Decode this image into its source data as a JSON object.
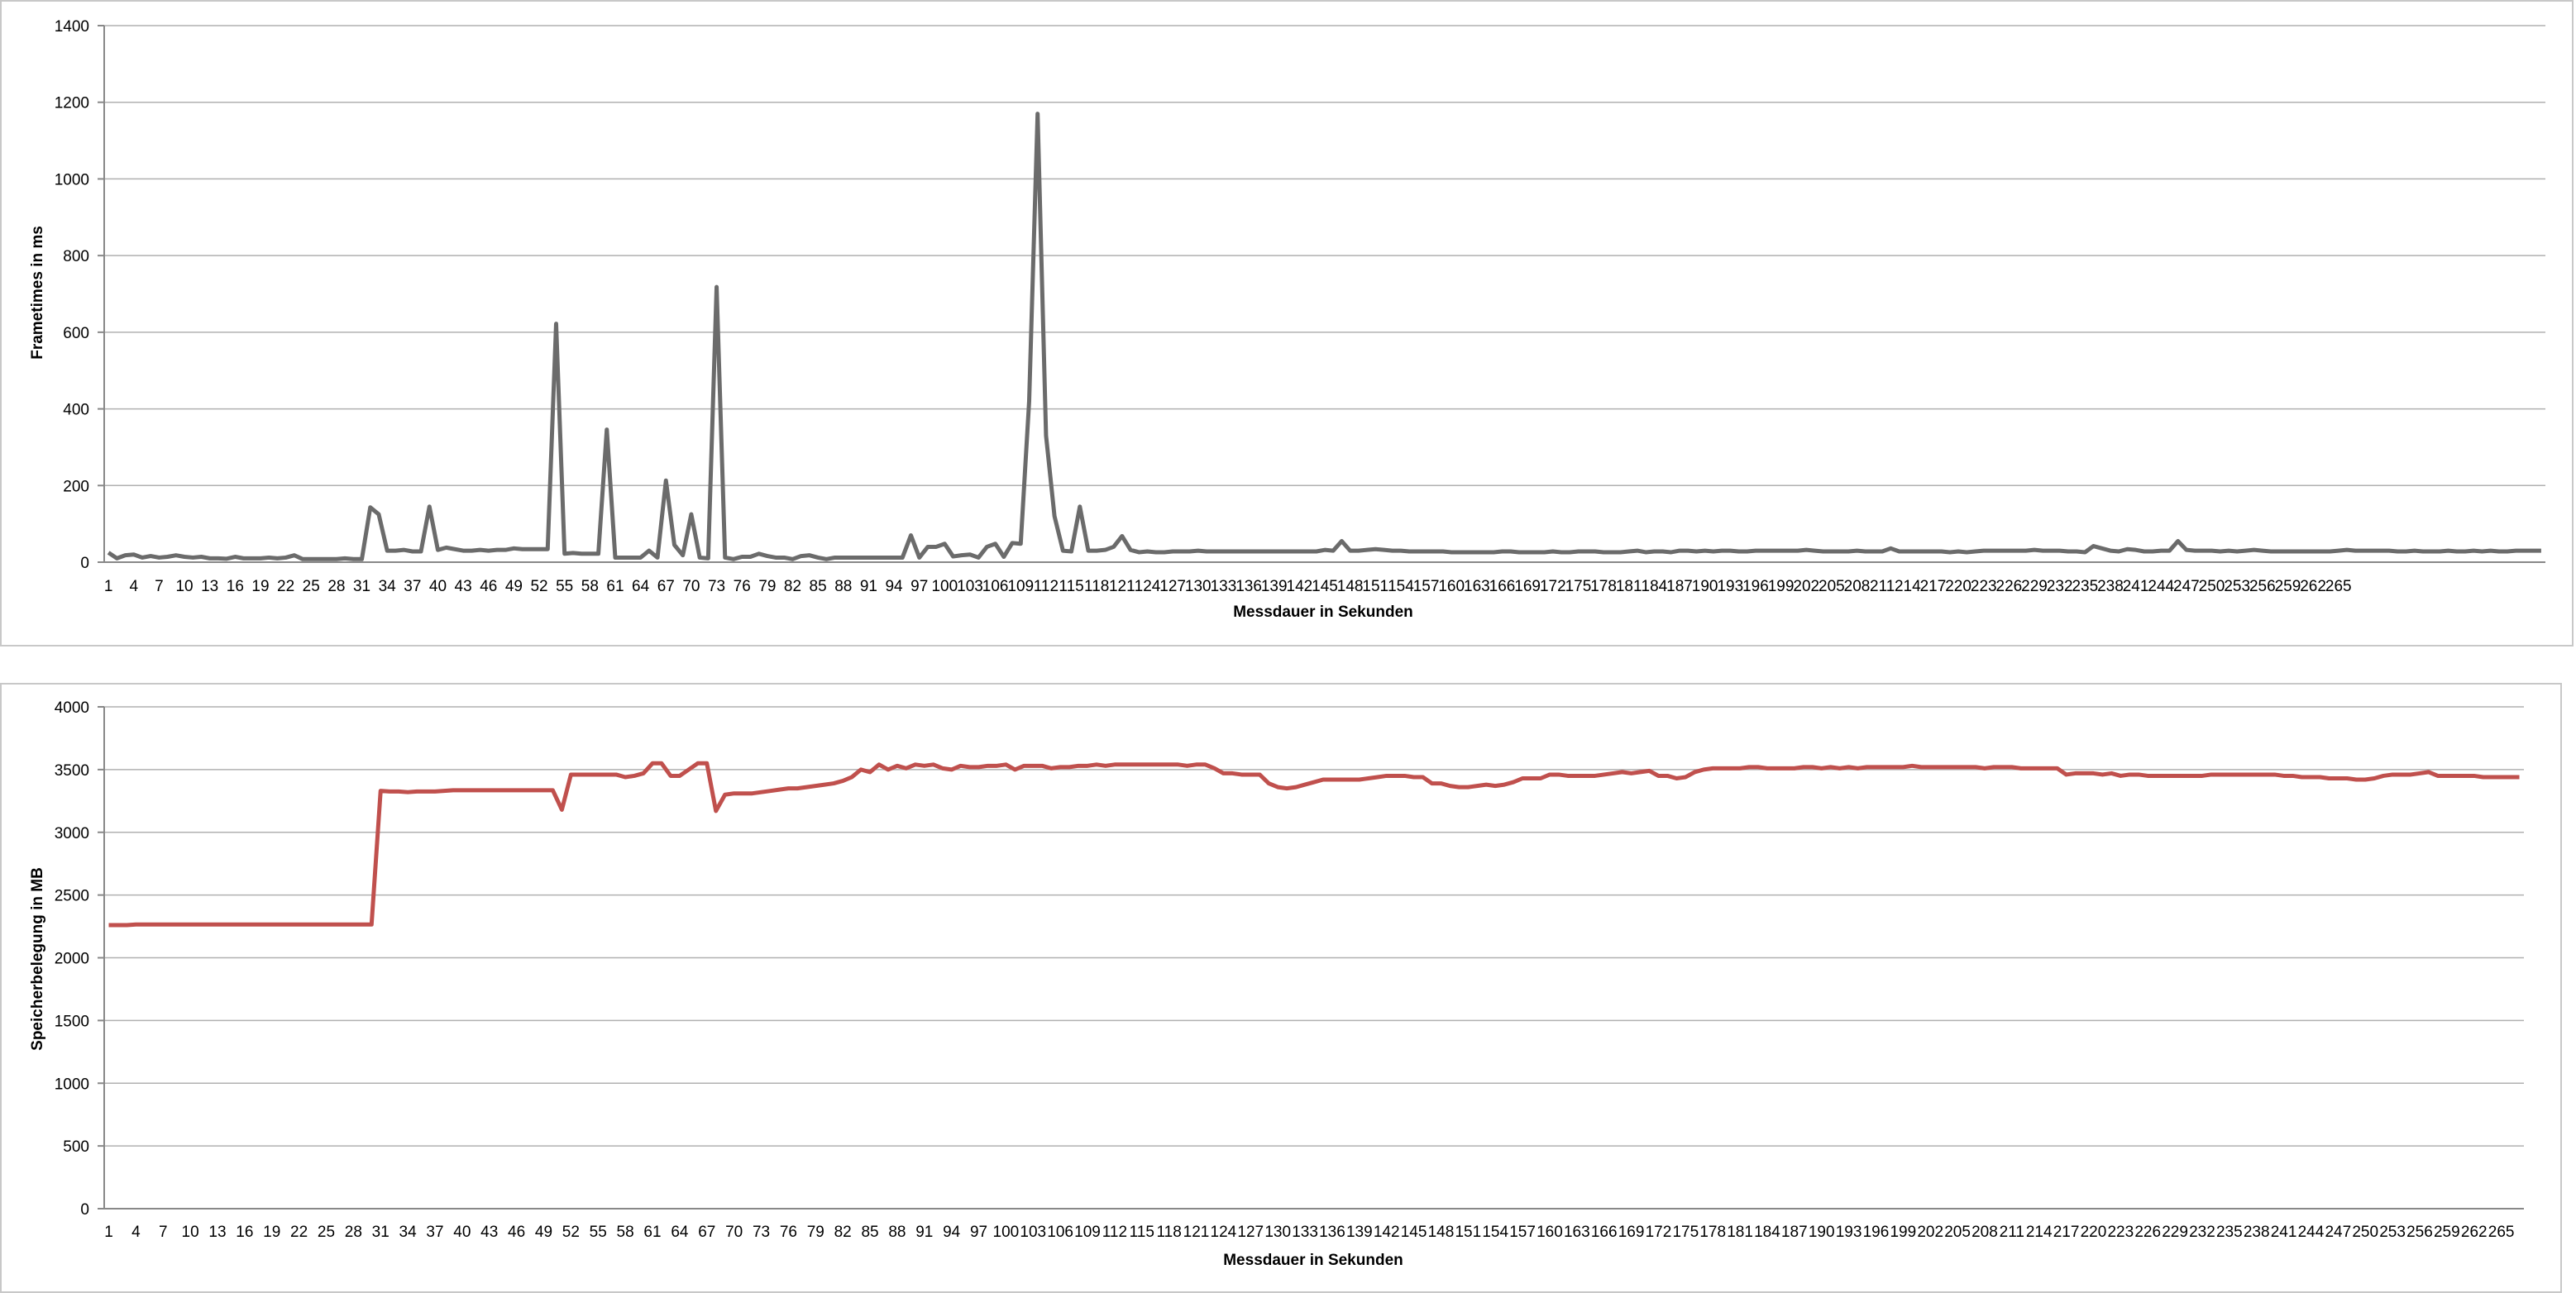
{
  "colors": {
    "frametime_series": "#6b6b6b",
    "memory_series": "#c0504d",
    "gridline": "#b0b0b0",
    "axis": "#888888"
  },
  "chart_data": [
    {
      "type": "line",
      "title": "",
      "xlabel": "Messdauer in Sekunden",
      "ylabel": "Frametimes in ms",
      "ylim": [
        0,
        1400
      ],
      "yticks": [
        0,
        200,
        400,
        600,
        800,
        1000,
        1200,
        1400
      ],
      "grid": true,
      "legend": "none",
      "x_start": 1,
      "x_end": 265,
      "x_tick_step": 3,
      "series": [
        {
          "values": [
            25,
            10,
            18,
            20,
            12,
            16,
            12,
            14,
            18,
            14,
            12,
            14,
            10,
            10,
            9,
            14,
            10,
            10,
            10,
            12,
            10,
            12,
            18,
            8,
            8,
            8,
            8,
            8,
            10,
            8,
            8,
            143,
            125,
            30,
            30,
            32,
            28,
            28,
            145,
            32,
            38,
            34,
            30,
            30,
            32,
            30,
            32,
            32,
            36,
            34,
            34,
            34,
            34,
            622,
            22,
            24,
            22,
            22,
            22,
            346,
            12,
            12,
            12,
            12,
            30,
            12,
            213,
            45,
            18,
            125,
            12,
            10,
            718,
            12,
            8,
            14,
            14,
            22,
            16,
            12,
            12,
            8,
            16,
            18,
            12,
            8,
            12,
            12,
            12,
            12,
            12,
            12,
            12,
            12,
            12,
            70,
            12,
            40,
            40,
            48,
            15,
            18,
            20,
            12,
            40,
            48,
            14,
            50,
            48,
            420,
            1170,
            330,
            120,
            30,
            28,
            145,
            30,
            30,
            32,
            40,
            68,
            32,
            26,
            28,
            26,
            26,
            28,
            28,
            28,
            30,
            28,
            28,
            28,
            28,
            28,
            28,
            28,
            28,
            28,
            28,
            28,
            28,
            28,
            28,
            32,
            30,
            55,
            30,
            30,
            32,
            34,
            32,
            30,
            30,
            28,
            28,
            28,
            28,
            28,
            26,
            26,
            26,
            26,
            26,
            26,
            28,
            28,
            26,
            26,
            26,
            26,
            28,
            26,
            26,
            28,
            28,
            28,
            26,
            26,
            26,
            28,
            30,
            26,
            28,
            28,
            26,
            30,
            30,
            28,
            30,
            28,
            30,
            30,
            28,
            28,
            30,
            30,
            30,
            30,
            30,
            30,
            32,
            30,
            28,
            28,
            28,
            28,
            30,
            28,
            28,
            28,
            36,
            28,
            28,
            28,
            28,
            28,
            28,
            26,
            28,
            26,
            28,
            30,
            30,
            30,
            30,
            30,
            30,
            32,
            30,
            30,
            30,
            28,
            28,
            26,
            42,
            36,
            30,
            28,
            34,
            32,
            28,
            28,
            30,
            30,
            55,
            32,
            30,
            30,
            30,
            28,
            30,
            28,
            30,
            32,
            30,
            28,
            28,
            28,
            28,
            28,
            28,
            28,
            28,
            30,
            32,
            30,
            30,
            30,
            30,
            30,
            28,
            28,
            30,
            28,
            28,
            28,
            30,
            28,
            28,
            30,
            28,
            30,
            28,
            28,
            30,
            30,
            30,
            30
          ]
        }
      ]
    },
    {
      "type": "line",
      "title": "",
      "xlabel": "Messdauer in Sekunden",
      "ylabel": "Speicherbelegung in MB",
      "ylim": [
        0,
        4000
      ],
      "yticks": [
        0,
        500,
        1000,
        1500,
        2000,
        2500,
        3000,
        3500,
        4000
      ],
      "grid": true,
      "legend": "none",
      "x_start": 1,
      "x_end": 265,
      "x_tick_step": 3,
      "series": [
        {
          "values": [
            2260,
            2260,
            2260,
            2265,
            2265,
            2265,
            2265,
            2265,
            2265,
            2265,
            2265,
            2265,
            2265,
            2265,
            2265,
            2265,
            2265,
            2265,
            2265,
            2265,
            2265,
            2265,
            2265,
            2265,
            2265,
            2265,
            2265,
            2265,
            2265,
            2265,
            3330,
            3325,
            3325,
            3320,
            3325,
            3325,
            3325,
            3330,
            3335,
            3335,
            3335,
            3335,
            3335,
            3335,
            3335,
            3335,
            3335,
            3335,
            3335,
            3335,
            3180,
            3460,
            3460,
            3460,
            3460,
            3460,
            3460,
            3440,
            3450,
            3470,
            3550,
            3550,
            3450,
            3450,
            3500,
            3550,
            3550,
            3170,
            3300,
            3310,
            3310,
            3310,
            3320,
            3330,
            3340,
            3350,
            3350,
            3360,
            3370,
            3380,
            3390,
            3410,
            3440,
            3500,
            3480,
            3540,
            3500,
            3530,
            3510,
            3540,
            3530,
            3540,
            3510,
            3500,
            3530,
            3520,
            3520,
            3530,
            3530,
            3540,
            3500,
            3530,
            3530,
            3530,
            3510,
            3520,
            3520,
            3530,
            3530,
            3540,
            3530,
            3540,
            3540,
            3540,
            3540,
            3540,
            3540,
            3540,
            3540,
            3530,
            3540,
            3540,
            3510,
            3470,
            3470,
            3460,
            3460,
            3460,
            3390,
            3360,
            3350,
            3360,
            3380,
            3400,
            3420,
            3420,
            3420,
            3420,
            3420,
            3430,
            3440,
            3450,
            3450,
            3450,
            3440,
            3440,
            3390,
            3390,
            3370,
            3360,
            3360,
            3370,
            3380,
            3370,
            3380,
            3400,
            3430,
            3430,
            3430,
            3460,
            3460,
            3450,
            3450,
            3450,
            3450,
            3460,
            3470,
            3480,
            3470,
            3480,
            3490,
            3450,
            3450,
            3430,
            3440,
            3480,
            3500,
            3510,
            3510,
            3510,
            3510,
            3520,
            3520,
            3510,
            3510,
            3510,
            3510,
            3520,
            3520,
            3510,
            3520,
            3510,
            3520,
            3510,
            3520,
            3520,
            3520,
            3520,
            3520,
            3530,
            3520,
            3520,
            3520,
            3520,
            3520,
            3520,
            3520,
            3510,
            3520,
            3520,
            3520,
            3510,
            3510,
            3510,
            3510,
            3510,
            3460,
            3470,
            3470,
            3470,
            3460,
            3470,
            3450,
            3460,
            3460,
            3450,
            3450,
            3450,
            3450,
            3450,
            3450,
            3450,
            3460,
            3460,
            3460,
            3460,
            3460,
            3460,
            3460,
            3460,
            3450,
            3450,
            3440,
            3440,
            3440,
            3430,
            3430,
            3430,
            3420,
            3420,
            3430,
            3450,
            3460,
            3460,
            3460,
            3470,
            3480,
            3450,
            3450,
            3450,
            3450,
            3450,
            3440,
            3440,
            3440,
            3440,
            3440
          ]
        }
      ]
    }
  ]
}
